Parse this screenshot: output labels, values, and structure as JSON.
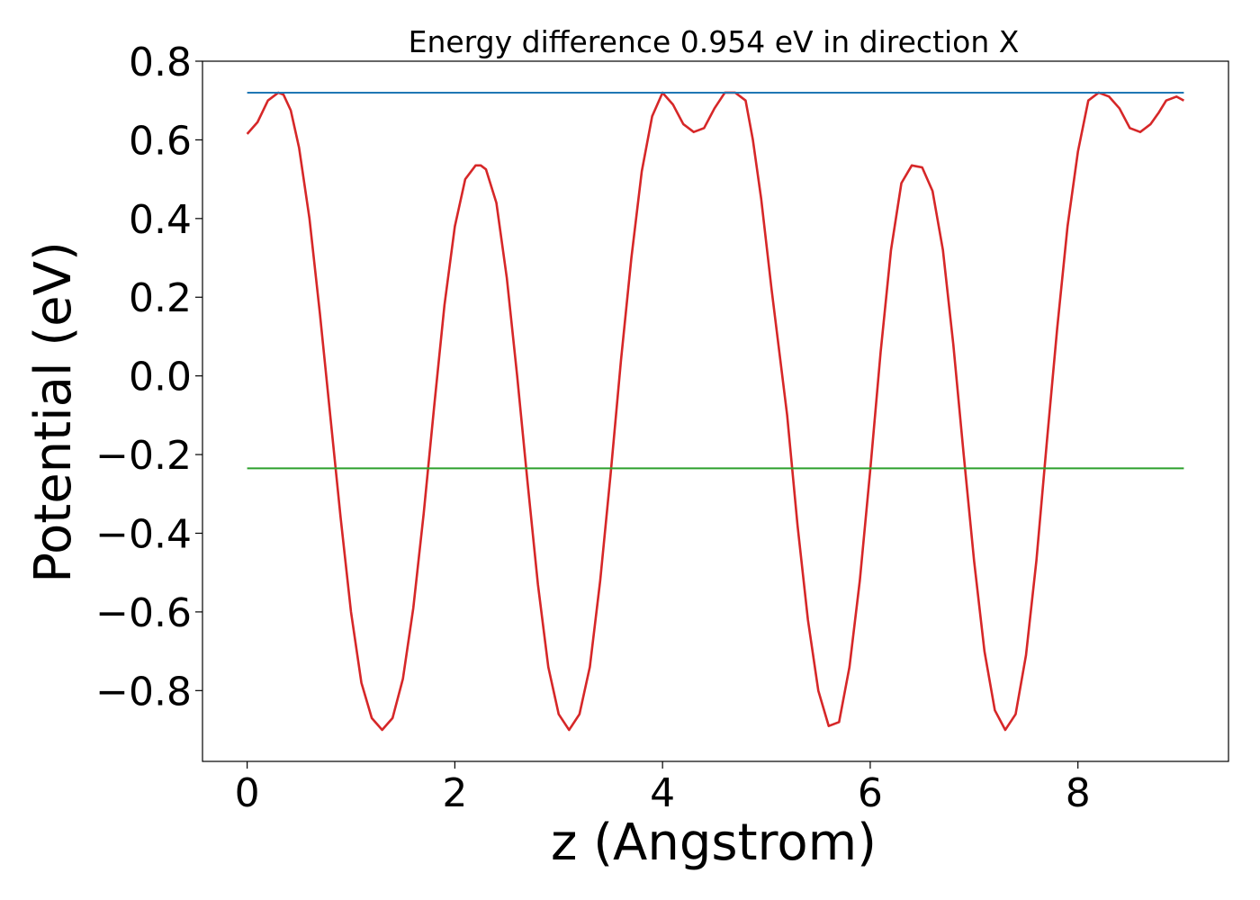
{
  "chart_data": {
    "type": "line",
    "title": "Energy difference 0.954 eV in direction X",
    "xlabel": "z (Angstrom)",
    "ylabel": "Potential (eV)",
    "xlim": [
      -0.43,
      9.45
    ],
    "ylim": [
      -0.98,
      0.8
    ],
    "x_ticks": [
      0,
      2,
      4,
      6,
      8
    ],
    "x_tick_labels": [
      "0",
      "2",
      "4",
      "6",
      "8"
    ],
    "y_ticks": [
      -0.8,
      -0.6,
      -0.4,
      -0.2,
      0.0,
      0.2,
      0.4,
      0.6,
      0.8
    ],
    "y_tick_labels": [
      "−0.8",
      "−0.6",
      "−0.4",
      "−0.2",
      "0.0",
      "0.2",
      "0.4",
      "0.6",
      "0.8"
    ],
    "grid": false,
    "series": [
      {
        "color": "#d62728",
        "x": [
          0,
          0.1,
          0.2,
          0.3,
          0.35,
          0.42,
          0.5,
          0.6,
          0.7,
          0.8,
          0.9,
          1.0,
          1.1,
          1.2,
          1.3,
          1.4,
          1.5,
          1.6,
          1.7,
          1.8,
          1.9,
          2.0,
          2.1,
          2.2,
          2.25,
          2.3,
          2.4,
          2.5,
          2.6,
          2.7,
          2.8,
          2.9,
          3.0,
          3.1,
          3.2,
          3.3,
          3.4,
          3.5,
          3.6,
          3.7,
          3.8,
          3.9,
          4.0,
          4.1,
          4.2,
          4.3,
          4.4,
          4.5,
          4.6,
          4.7,
          4.8,
          4.87,
          4.95,
          5.05,
          5.2,
          5.3,
          5.4,
          5.5,
          5.6,
          5.7,
          5.8,
          5.9,
          6.0,
          6.1,
          6.2,
          6.3,
          6.4,
          6.5,
          6.6,
          6.7,
          6.8,
          6.9,
          7.0,
          7.1,
          7.2,
          7.3,
          7.4,
          7.5,
          7.6,
          7.7,
          7.8,
          7.9,
          8.0,
          8.1,
          8.2,
          8.3,
          8.4,
          8.5,
          8.6,
          8.7,
          8.78,
          8.85,
          8.95,
          9.02
        ],
        "y": [
          0.615,
          0.645,
          0.7,
          0.72,
          0.715,
          0.675,
          0.58,
          0.4,
          0.16,
          -0.1,
          -0.36,
          -0.6,
          -0.78,
          -0.87,
          -0.9,
          -0.87,
          -0.77,
          -0.59,
          -0.35,
          -0.08,
          0.18,
          0.38,
          0.5,
          0.535,
          0.535,
          0.525,
          0.44,
          0.25,
          0.0,
          -0.27,
          -0.53,
          -0.74,
          -0.86,
          -0.9,
          -0.86,
          -0.74,
          -0.52,
          -0.25,
          0.04,
          0.3,
          0.52,
          0.66,
          0.72,
          0.69,
          0.64,
          0.62,
          0.63,
          0.68,
          0.72,
          0.72,
          0.7,
          0.6,
          0.45,
          0.22,
          -0.1,
          -0.38,
          -0.62,
          -0.8,
          -0.89,
          -0.88,
          -0.74,
          -0.52,
          -0.24,
          0.06,
          0.32,
          0.49,
          0.535,
          0.53,
          0.47,
          0.32,
          0.08,
          -0.2,
          -0.47,
          -0.7,
          -0.85,
          -0.9,
          -0.86,
          -0.71,
          -0.47,
          -0.17,
          0.12,
          0.38,
          0.57,
          0.7,
          0.72,
          0.71,
          0.68,
          0.63,
          0.62,
          0.64,
          0.67,
          0.7,
          0.71,
          0.7
        ]
      },
      {
        "color": "#1f77b4",
        "x": [
          0,
          9.02
        ],
        "y": [
          0.72,
          0.72
        ]
      },
      {
        "color": "#2ca02c",
        "x": [
          0,
          9.02
        ],
        "y": [
          -0.235,
          -0.235
        ]
      }
    ]
  }
}
